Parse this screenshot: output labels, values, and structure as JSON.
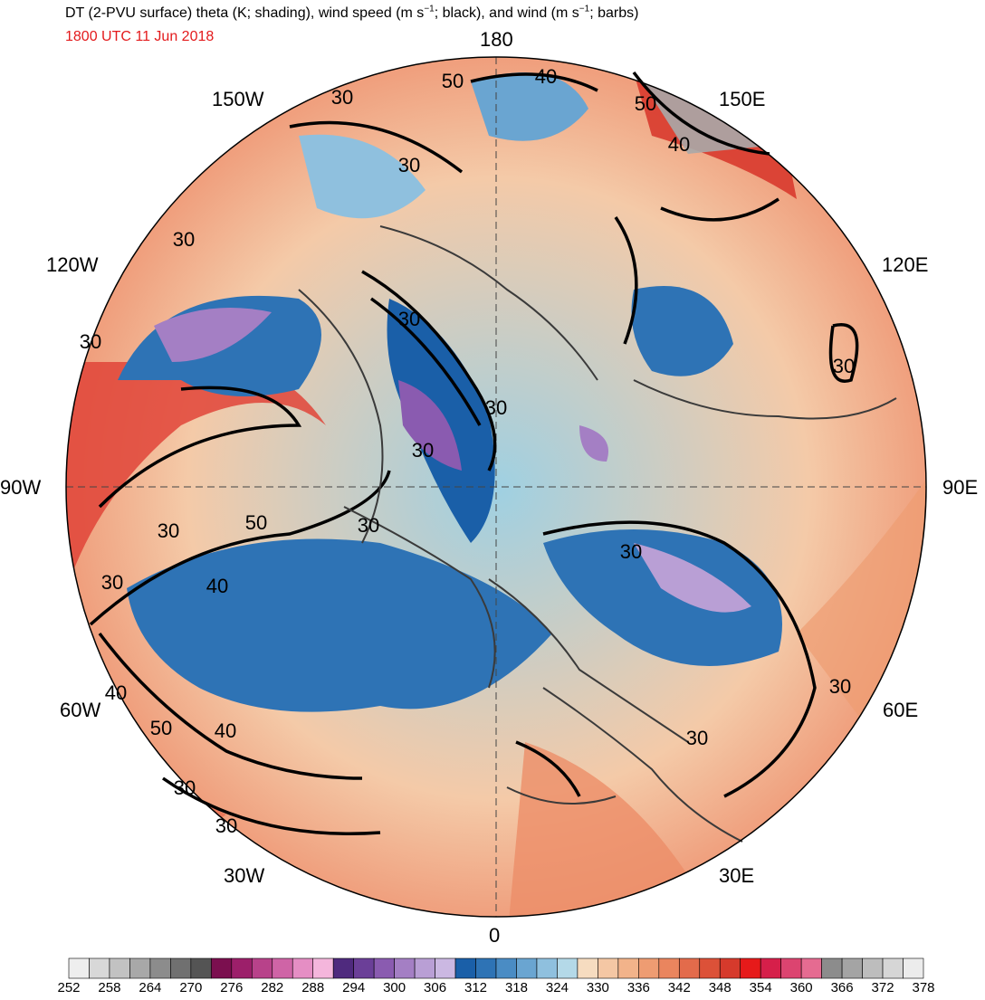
{
  "title": {
    "prefix": "DT (2-PVU surface) theta (K; shading), wind speed (m s",
    "exp1": "−1",
    "mid": "; black), and wind (m s",
    "exp2": "−1",
    "suffix": "; barbs)"
  },
  "valid_time": "1800 UTC 11 Jun 2018",
  "valid_time_color": "#e31a1c",
  "longitude_labels": {
    "top": "180",
    "w150": "150W",
    "e150": "150E",
    "w120": "120W",
    "e120": "120E",
    "w90": "90W",
    "e90": "90E",
    "w60": "60W",
    "e60": "60E",
    "w30": "30W",
    "e30": "30E",
    "bottom": "0"
  },
  "contour_labels": [
    "50",
    "40",
    "30",
    "30",
    "50",
    "40",
    "30",
    "30",
    "30",
    "30",
    "30",
    "30",
    "30",
    "50",
    "30",
    "30",
    "40",
    "30",
    "40",
    "50",
    "40",
    "30",
    "30",
    "30",
    "30"
  ],
  "colorbar": {
    "colors": [
      "#eeeeee",
      "#d8d8d8",
      "#c2c2c2",
      "#a8a8a8",
      "#8c8c8c",
      "#707070",
      "#545454",
      "#7b0f4f",
      "#9c1f6a",
      "#b8428a",
      "#cf64a6",
      "#e58ec4",
      "#f4b6dc",
      "#4f2a7e",
      "#6b3f98",
      "#8a5bb0",
      "#a47fc4",
      "#b99fd5",
      "#cbb8e2",
      "#1a5fa8",
      "#2e73b5",
      "#4a8cc4",
      "#6aa5d1",
      "#8fc0de",
      "#b4d9e8",
      "#f6dcc0",
      "#f4c7a4",
      "#f2b38a",
      "#ee9c72",
      "#ea855e",
      "#e36b4b",
      "#dc5138",
      "#d63a2c",
      "#e61a1a",
      "#d61f4a",
      "#dc4470",
      "#e56b91",
      "#8c8c8c",
      "#a4a4a4",
      "#bdbdbd",
      "#d6d6d6",
      "#ececec"
    ],
    "labels": [
      "252",
      "258",
      "264",
      "270",
      "276",
      "282",
      "288",
      "294",
      "300",
      "306",
      "312",
      "318",
      "324",
      "330",
      "336",
      "342",
      "348",
      "354",
      "360",
      "366",
      "372",
      "378"
    ]
  }
}
